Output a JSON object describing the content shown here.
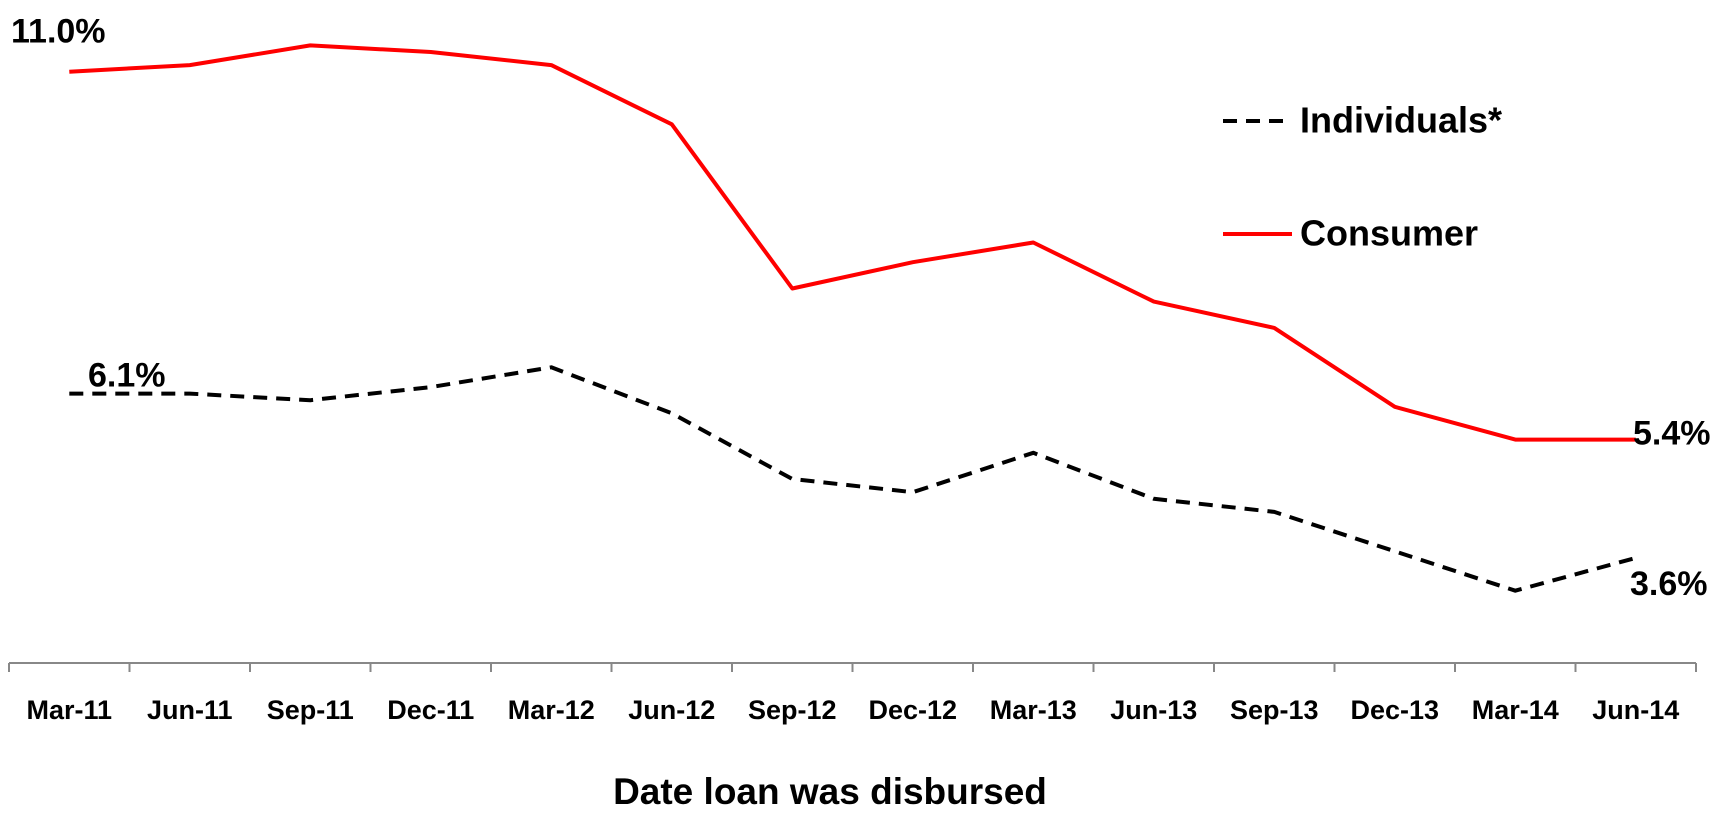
{
  "chart_data": {
    "type": "line",
    "xlabel": "Date loan was disbursed",
    "categories": [
      "Mar-11",
      "Jun-11",
      "Sep-11",
      "Dec-11",
      "Mar-12",
      "Jun-12",
      "Sep-12",
      "Dec-12",
      "Mar-13",
      "Jun-13",
      "Sep-13",
      "Dec-13",
      "Mar-14",
      "Jun-14"
    ],
    "series": [
      {
        "name": "Individuals*",
        "color": "#000000",
        "dash": true,
        "values": [
          6.1,
          6.1,
          6.0,
          6.2,
          6.5,
          5.8,
          4.8,
          4.6,
          5.2,
          4.5,
          4.3,
          3.7,
          3.1,
          3.6
        ],
        "value_labels": [
          "6.1%",
          null,
          null,
          null,
          null,
          null,
          null,
          null,
          null,
          null,
          null,
          null,
          null,
          "3.6%"
        ]
      },
      {
        "name": "Consumer",
        "color": "#ff0000",
        "dash": false,
        "values": [
          11.0,
          11.1,
          11.4,
          11.3,
          11.1,
          10.2,
          7.7,
          8.1,
          8.4,
          7.5,
          7.1,
          5.9,
          5.4,
          5.4
        ],
        "value_labels": [
          "11.0%",
          null,
          null,
          null,
          null,
          null,
          null,
          null,
          null,
          null,
          null,
          null,
          null,
          "5.4%"
        ]
      }
    ],
    "ylim": [
      2,
      12
    ],
    "grid": false,
    "legend": "upper right"
  }
}
